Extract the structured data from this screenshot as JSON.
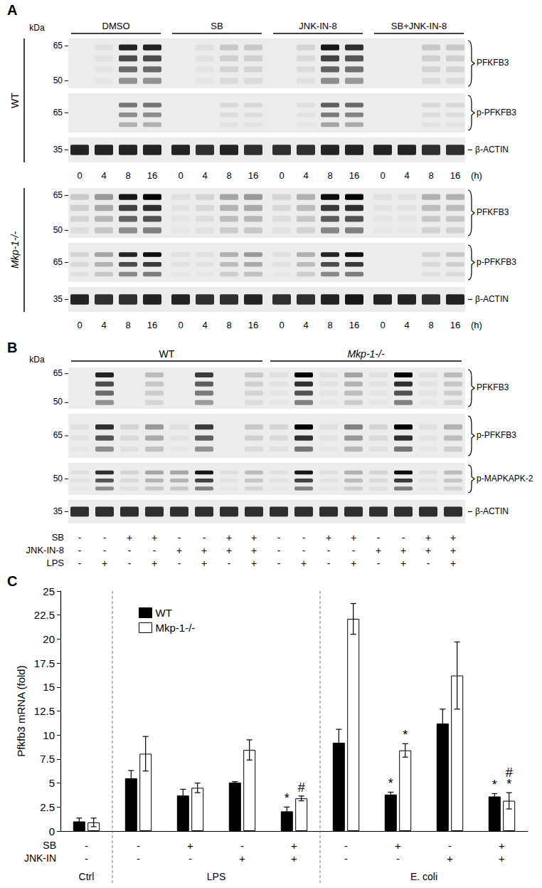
{
  "panel_A": {
    "label": "A",
    "kda_label": "kDa",
    "treatments": [
      "DMSO",
      "SB",
      "JNK-IN-8",
      "SB+JNK-IN-8"
    ],
    "timepoints": [
      0,
      4,
      8,
      16
    ],
    "time_unit": "(h)",
    "blocks": [
      {
        "genotype": "WT",
        "rows": [
          {
            "name": "PFKFB3",
            "markers": [
              65,
              50
            ],
            "intensity": [
              [
                0,
                0.05,
                0.85,
                0.85
              ],
              [
                0,
                0.05,
                0.15,
                0.15
              ],
              [
                0,
                0.1,
                0.9,
                0.8
              ],
              [
                0,
                0,
                0.15,
                0.15
              ]
            ]
          },
          {
            "name": "p-PFKFB3",
            "markers": [
              65
            ],
            "intensity": [
              [
                0,
                0,
                0.5,
                0.5
              ],
              [
                0,
                0,
                0.08,
                0.08
              ],
              [
                0,
                0.05,
                0.6,
                0.55
              ],
              [
                0,
                0,
                0.08,
                0.08
              ]
            ]
          },
          {
            "name": "β-ACTIN",
            "markers": [
              35
            ],
            "intensity": [
              [
                0.85,
                0.85,
                0.85,
                0.85
              ],
              [
                0.85,
                0.8,
                0.85,
                0.8
              ],
              [
                0.8,
                0.8,
                0.85,
                0.85
              ],
              [
                0.85,
                0.85,
                0.8,
                0.8
              ]
            ]
          }
        ]
      },
      {
        "genotype": "Mkp-1-/-",
        "rows": [
          {
            "name": "PFKFB3",
            "markers": [
              65,
              50
            ],
            "intensity": [
              [
                0.15,
                0.35,
                0.9,
                1
              ],
              [
                0.05,
                0.1,
                0.3,
                0.35
              ],
              [
                0.1,
                0.25,
                0.95,
                1
              ],
              [
                0.05,
                0.05,
                0.25,
                0.25
              ]
            ]
          },
          {
            "name": "p-PFKFB3",
            "markers": [
              65
            ],
            "intensity": [
              [
                0.1,
                0.3,
                0.85,
                0.95
              ],
              [
                0.05,
                0.05,
                0.25,
                0.35
              ],
              [
                0.05,
                0.25,
                0.85,
                0.95
              ],
              [
                0,
                0,
                0.1,
                0.15
              ]
            ]
          },
          {
            "name": "β-ACTIN",
            "markers": [
              35
            ],
            "intensity": [
              [
                0.85,
                0.8,
                0.8,
                0.85
              ],
              [
                0.85,
                0.8,
                0.8,
                0.85
              ],
              [
                0.8,
                0.8,
                0.85,
                0.9
              ],
              [
                0.85,
                0.85,
                0.8,
                0.85
              ]
            ]
          }
        ]
      }
    ]
  },
  "panel_B": {
    "label": "B",
    "kda_label": "kDa",
    "genotypes": [
      "WT",
      "Mkp-1-/-"
    ],
    "rows": [
      {
        "name": "PFKFB3",
        "markers": [
          65,
          50
        ],
        "intensity": [
          0,
          0.85,
          0,
          0.2,
          0,
          0.75,
          0,
          0.15,
          0.05,
          1,
          0.05,
          0.3,
          0.05,
          1,
          0.05,
          0.2
        ]
      },
      {
        "name": "p-PFKFB3",
        "markers": [
          65
        ],
        "intensity": [
          0.05,
          0.8,
          0.1,
          0.35,
          0.05,
          0.75,
          0,
          0.15,
          0.1,
          1,
          0.05,
          0.45,
          0.1,
          1,
          0.05,
          0.25
        ]
      },
      {
        "name": "p-MAPKAPK-2",
        "markers": [
          50
        ],
        "intensity": [
          0.05,
          0.8,
          0.1,
          0.3,
          0.3,
          0.9,
          0.05,
          0.2,
          0.05,
          0.9,
          0.05,
          0.25,
          0.1,
          0.95,
          0.05,
          0.2
        ]
      },
      {
        "name": "β-ACTIN",
        "markers": [
          35
        ],
        "intensity": [
          0.8,
          0.8,
          0.8,
          0.8,
          0.8,
          0.8,
          0.8,
          0.8,
          0.8,
          0.8,
          0.8,
          0.8,
          0.8,
          0.8,
          0.8,
          0.8
        ]
      }
    ],
    "conditions": [
      {
        "label": "SB",
        "values": [
          "-",
          "-",
          "+",
          "+",
          "-",
          "-",
          "+",
          "+",
          "-",
          "-",
          "+",
          "+",
          "-",
          "-",
          "+",
          "+"
        ]
      },
      {
        "label": "JNK-IN-8",
        "values": [
          "-",
          "-",
          "-",
          "-",
          "+",
          "+",
          "+",
          "+",
          "-",
          "-",
          "-",
          "-",
          "+",
          "+",
          "+",
          "+"
        ]
      },
      {
        "label": "LPS",
        "values": [
          "-",
          "+",
          "-",
          "+",
          "-",
          "+",
          "-",
          "+",
          "-",
          "+",
          "-",
          "+",
          "-",
          "+",
          "-",
          "+"
        ]
      }
    ]
  },
  "panel_C": {
    "label": "C"
  },
  "chart_data": {
    "type": "bar",
    "ylabel": "Pfkfb3 mRNA (fold)",
    "categories": [
      null,
      null,
      null,
      null,
      null,
      null,
      null,
      null,
      null
    ],
    "series": [
      {
        "name": "WT",
        "color": "#000000",
        "values": [
          1.0,
          5.5,
          3.7,
          5.05,
          2.05,
          9.2,
          3.8,
          11.2,
          3.6
        ],
        "errors": [
          0.35,
          0.8,
          0.65,
          0.1,
          0.45,
          1.4,
          0.25,
          1.5,
          0.3
        ],
        "significance": [
          null,
          null,
          null,
          null,
          [
            "*"
          ],
          null,
          [
            "*"
          ],
          null,
          [
            "*"
          ]
        ]
      },
      {
        "name": "Mkp-1-/-",
        "color": "#ffffff",
        "values": [
          0.9,
          8.05,
          4.5,
          8.45,
          3.4,
          22.1,
          8.4,
          16.2,
          3.15
        ],
        "errors": [
          0.45,
          1.8,
          0.5,
          1.05,
          0.25,
          1.6,
          0.7,
          3.5,
          0.85
        ],
        "significance": [
          null,
          null,
          null,
          null,
          [
            "#"
          ],
          null,
          [
            "*"
          ],
          null,
          [
            "*",
            "#"
          ]
        ]
      }
    ],
    "treatment_rows": [
      {
        "label": "SB",
        "values": [
          "-",
          "-",
          "+",
          "-",
          "+",
          "-",
          "+",
          "-",
          "+"
        ]
      },
      {
        "label": "JNK-IN",
        "values": [
          "-",
          "-",
          "-",
          "+",
          "+",
          "-",
          "-",
          "+",
          "+"
        ]
      }
    ],
    "groups": [
      {
        "label": "Ctrl",
        "from": 0,
        "to": 0
      },
      {
        "label": "LPS",
        "from": 1,
        "to": 4
      },
      {
        "label": "E. coli",
        "from": 5,
        "to": 8
      }
    ],
    "ylim": [
      0,
      25
    ],
    "yticks": [
      0,
      2.5,
      5,
      7.5,
      10,
      12.5,
      15,
      17.5,
      20,
      22.5,
      25
    ],
    "grid": false,
    "legend": "upper left"
  }
}
